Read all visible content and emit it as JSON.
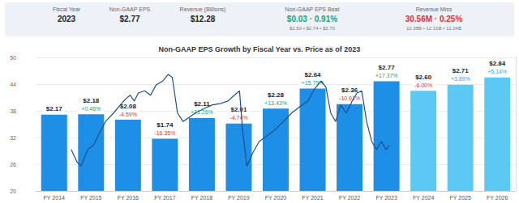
{
  "header": {
    "columns": [
      {
        "label": "Fiscal Year",
        "value": "2023"
      },
      {
        "label": "Non-GAAP EPS",
        "value": "$2.77"
      },
      {
        "label": "Revenue (Billions)",
        "value": "$12.28"
      },
      {
        "label": "Non-GAAP EPS Beat",
        "value": "$0.03 · 0.91%",
        "detail": "$2.60 • $2.74 • $2.70",
        "color": "#14a37f"
      },
      {
        "label": "Revenue Miss",
        "value": "30.56M · 0.25%",
        "detail": "12.38B • 12.31B • 12.24B",
        "color": "#e03131"
      }
    ]
  },
  "chart_data": {
    "type": "bar",
    "title": "Non-GAAP EPS Growth by Fiscal Year vs. Price as of 2023",
    "categories": [
      "FY 2014",
      "FY 2015",
      "FY 2016",
      "FY 2017",
      "FY 2018",
      "FY 2019",
      "FY 2020",
      "FY 2021",
      "FY 2022",
      "FY 2023",
      "FY 2024",
      "FY 2025",
      "FY 2026"
    ],
    "ylim": [
      20,
      50
    ],
    "yticks": [
      20,
      26,
      32,
      38,
      44,
      50
    ],
    "y2lim": [
      0.8,
      3.2
    ],
    "xlim": [
      2013.5,
      2026.5
    ],
    "grid": true,
    "data_labels": true,
    "series": [
      {
        "type": "bar",
        "axis": "y2",
        "colors": [
          "#1e8fe6",
          "#1e8fe6",
          "#1e8fe6",
          "#1e8fe6",
          "#1e8fe6",
          "#1e8fe6",
          "#1e8fe6",
          "#1e8fe6",
          "#1e8fe6",
          "#1e8fe6",
          "#5cc9f5",
          "#5cc9f5",
          "#5cc9f5"
        ],
        "values": [
          2.17,
          2.18,
          2.08,
          1.74,
          2.11,
          2.01,
          2.28,
          2.64,
          2.36,
          2.77,
          2.6,
          2.71,
          2.84
        ],
        "value_labels": [
          "$2.17",
          "$2.18",
          "$2.08",
          "$1.74",
          "$2.11",
          "$2.01",
          "$2.28",
          "$2.64",
          "$2.36",
          "$2.77",
          "$2.60",
          "$2.71",
          "$2.84"
        ],
        "growth": [
          null,
          0.46,
          -4.59,
          -16.35,
          21.26,
          -4.74,
          13.43,
          15.79,
          -10.61,
          17.37,
          -6.0,
          3.89,
          5.14
        ],
        "growth_labels": [
          null,
          "+0.46%",
          "-4.59%",
          "-16.35%",
          "+21.26%",
          "-4.74%",
          "+13.43%",
          "+15.79%",
          "-10.61%",
          "+17.37%",
          "-6.00%",
          "+3.89%",
          "+5.14%"
        ]
      },
      {
        "type": "line",
        "color": "#1f4e8c",
        "x": [
          2014.46,
          2014.62,
          2014.73,
          2014.91,
          2015.06,
          2015.22,
          2015.39,
          2015.61,
          2015.79,
          2015.94,
          2016.06,
          2016.17,
          2016.28,
          2016.45,
          2016.61,
          2016.76,
          2016.94,
          2017.09,
          2017.2,
          2017.34,
          2017.49,
          2017.65,
          2017.82,
          2018.04,
          2018.27,
          2018.49,
          2018.71,
          2018.88,
          2019.02,
          2019.1,
          2019.22,
          2019.37,
          2019.55,
          2019.77,
          2019.99,
          2020.21,
          2020.43,
          2020.65,
          2020.87,
          2021.05,
          2021.23,
          2021.36,
          2021.49,
          2021.62,
          2021.76,
          2021.91,
          2022.07,
          2022.2,
          2022.33,
          2022.46,
          2022.6,
          2022.73,
          2022.86,
          2022.99,
          2023.08
        ],
        "values": [
          29.3,
          26.5,
          25.6,
          29.3,
          30.2,
          32.9,
          35.6,
          37.5,
          39.3,
          40.7,
          41.5,
          40.2,
          42.0,
          42.5,
          41.5,
          43.8,
          44.7,
          46.2,
          45.5,
          37.5,
          35.6,
          36.5,
          37.5,
          38.4,
          39.3,
          39.6,
          40.2,
          41.5,
          42.5,
          33.8,
          25.6,
          28.4,
          31.1,
          32.4,
          33.8,
          35.6,
          37.5,
          38.9,
          40.2,
          42.9,
          44.7,
          43.3,
          37.5,
          35.6,
          39.3,
          37.5,
          40.2,
          42.0,
          42.5,
          35.6,
          31.1,
          29.3,
          31.1,
          29.3,
          30.2
        ]
      }
    ]
  }
}
